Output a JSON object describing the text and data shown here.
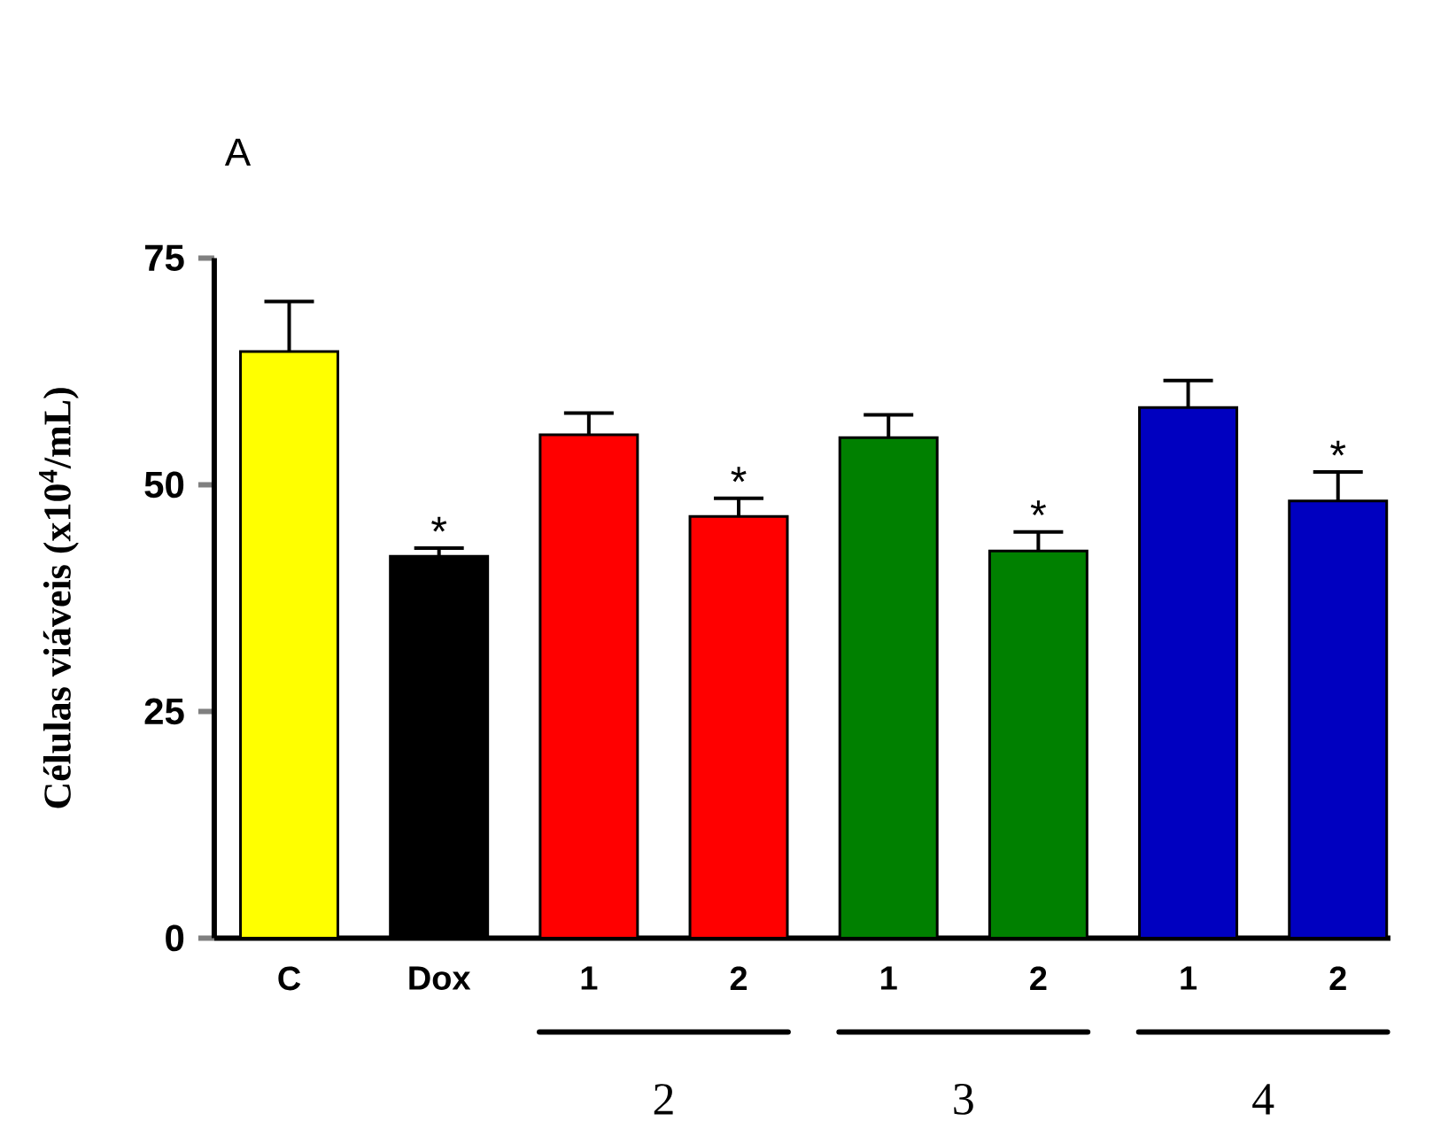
{
  "chart_data": {
    "type": "bar",
    "title": "A",
    "ylabel": "Células viáveis (x10$^{4}$/mL)",
    "categories": [
      "C",
      "Dox",
      "1",
      "2",
      "1",
      "2",
      "1",
      "2"
    ],
    "values": [
      64.7,
      42.1,
      55.5,
      46.5,
      55.2,
      42.7,
      58.5,
      48.2
    ],
    "errors": [
      5.5,
      0.9,
      2.4,
      2.0,
      2.5,
      2.1,
      3.0,
      3.2
    ],
    "colors": [
      "#ffff00",
      "#000000",
      "#ff0000",
      "#ff0000",
      "#008000",
      "#008000",
      "#0000c0",
      "#0000c0"
    ],
    "value_labels": [
      null,
      "*",
      null,
      "*",
      null,
      "*",
      null,
      "*"
    ],
    "annotations": [
      "2",
      "3",
      "4"
    ],
    "ylim": [
      0,
      75
    ],
    "yticks": [
      0,
      25,
      50,
      75
    ],
    "grid": false
  }
}
